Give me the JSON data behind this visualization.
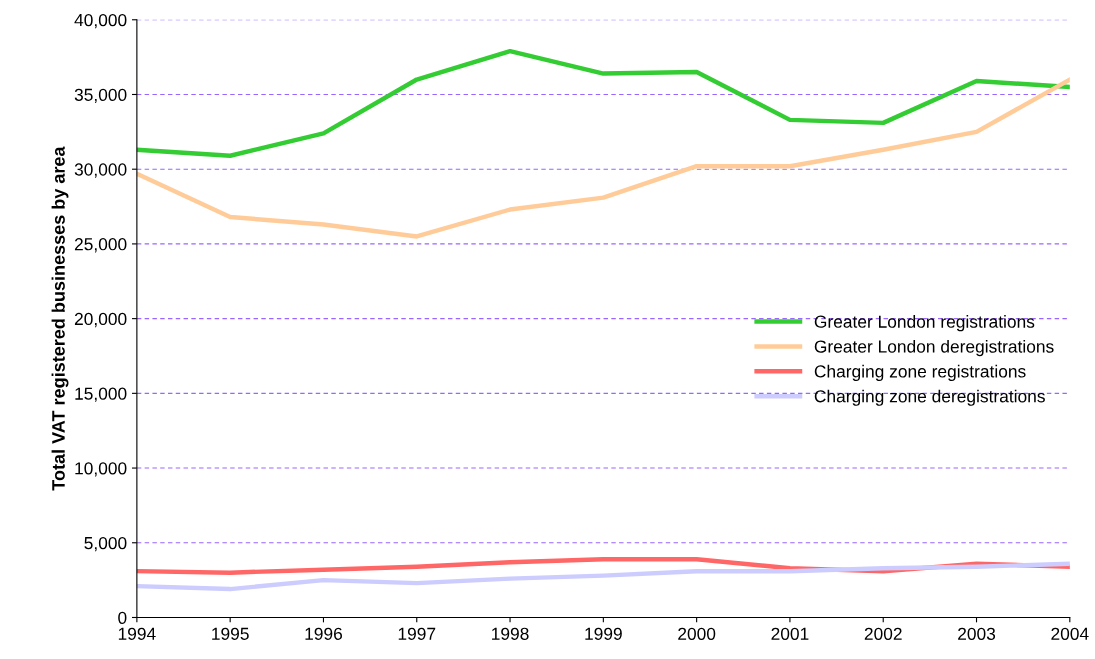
{
  "chart_data": {
    "type": "line",
    "ylabel": "Total VAT registered businesses by area",
    "x": [
      1994,
      1995,
      1996,
      1997,
      1998,
      1999,
      2000,
      2001,
      2002,
      2003,
      2004
    ],
    "xlim": [
      1994,
      2004
    ],
    "xticks": [
      1994,
      1995,
      1996,
      1997,
      1998,
      1999,
      2000,
      2001,
      2002,
      2003,
      2004
    ],
    "ylim": [
      0,
      40000
    ],
    "yticks": [
      {
        "value": 0,
        "label": "0"
      },
      {
        "value": 5000,
        "label": "5,000"
      },
      {
        "value": 10000,
        "label": "10,000"
      },
      {
        "value": 15000,
        "label": "15,000"
      },
      {
        "value": 20000,
        "label": "20,000"
      },
      {
        "value": 25000,
        "label": "25,000"
      },
      {
        "value": 30000,
        "label": "30,000"
      },
      {
        "value": 35000,
        "label": "35,000"
      },
      {
        "value": 40000,
        "label": "40,000"
      }
    ],
    "grid": "y",
    "legend": "right",
    "marker": "none",
    "line_style": "solid",
    "series": [
      {
        "name": "Greater London registrations",
        "color": "#33cc33",
        "values": [
          31300,
          30900,
          32400,
          36000,
          37900,
          36400,
          36500,
          33300,
          33100,
          35900,
          35500
        ]
      },
      {
        "name": "Greater London deregistrations",
        "color": "#ffcc99",
        "values": [
          29700,
          26800,
          26300,
          25500,
          27300,
          28100,
          30200,
          30200,
          31300,
          32500,
          36000
        ]
      },
      {
        "name": "Charging zone registrations",
        "color": "#ff6666",
        "values": [
          3100,
          3000,
          3200,
          3400,
          3700,
          3900,
          3900,
          3300,
          3100,
          3600,
          3400
        ]
      },
      {
        "name": "Charging zone deregistrations",
        "color": "#ccccff",
        "values": [
          2100,
          1900,
          2500,
          2300,
          2600,
          2800,
          3100,
          3100,
          3300,
          3400,
          3600
        ]
      }
    ]
  }
}
